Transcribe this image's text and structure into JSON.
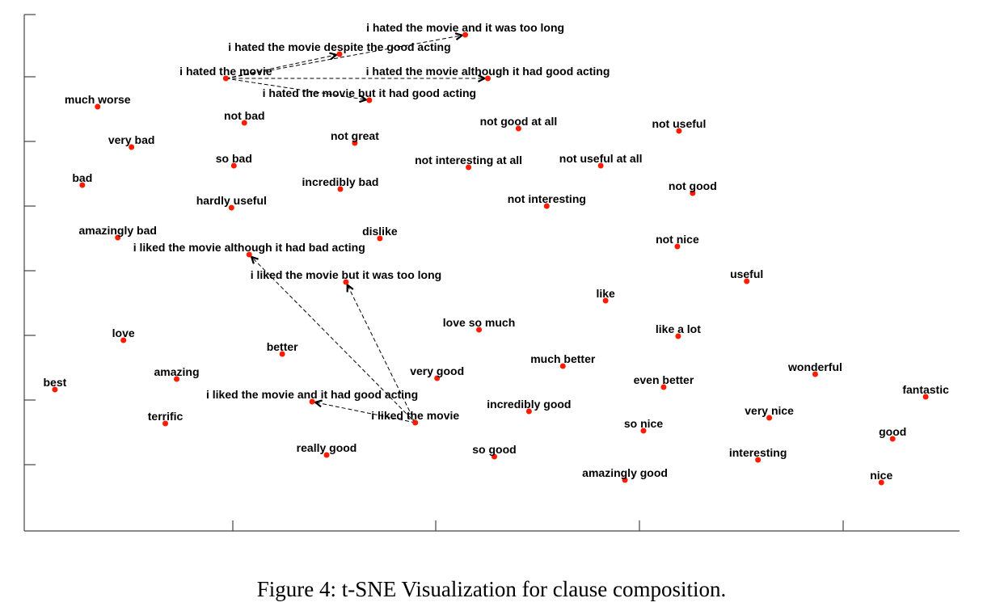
{
  "caption": "Figure 4: t-SNE Visualization for clause composition.",
  "chart_data": {
    "type": "scatter",
    "title": "",
    "xlabel": "",
    "ylabel": "",
    "xlim": [
      0,
      1160
    ],
    "ylim": [
      0,
      640
    ],
    "grid": false,
    "legend": "none",
    "colors": {
      "point": "#ff1a00",
      "arrow": "#000000"
    },
    "points": [
      {
        "label": "i hated the movie and it was too long",
        "x": 547,
        "y": 614
      },
      {
        "label": "i hated the movie despite the good acting",
        "x": 391,
        "y": 590
      },
      {
        "label": "i hated the movie",
        "x": 250,
        "y": 560
      },
      {
        "label": "i hated the movie although it had good acting",
        "x": 575,
        "y": 560
      },
      {
        "label": "i hated the movie but it had good acting",
        "x": 428,
        "y": 533
      },
      {
        "label": "much worse",
        "x": 91,
        "y": 525
      },
      {
        "label": "not bad",
        "x": 273,
        "y": 505
      },
      {
        "label": "not good at all",
        "x": 613,
        "y": 498
      },
      {
        "label": "not useful",
        "x": 812,
        "y": 495
      },
      {
        "label": "very bad",
        "x": 133,
        "y": 475
      },
      {
        "label": "not great",
        "x": 410,
        "y": 480
      },
      {
        "label": "so bad",
        "x": 260,
        "y": 452
      },
      {
        "label": "not interesting at all",
        "x": 551,
        "y": 450
      },
      {
        "label": "not useful at all",
        "x": 715,
        "y": 452
      },
      {
        "label": "bad",
        "x": 72,
        "y": 428
      },
      {
        "label": "incredibly bad",
        "x": 392,
        "y": 423
      },
      {
        "label": "not good",
        "x": 829,
        "y": 418
      },
      {
        "label": "hardly useful",
        "x": 257,
        "y": 400
      },
      {
        "label": "not interesting",
        "x": 648,
        "y": 402
      },
      {
        "label": "amazingly bad",
        "x": 116,
        "y": 363
      },
      {
        "label": "dislike",
        "x": 441,
        "y": 362
      },
      {
        "label": "not nice",
        "x": 810,
        "y": 352
      },
      {
        "label": "i liked the movie although it had bad acting",
        "x": 279,
        "y": 342
      },
      {
        "label": "i liked the movie but it was too long",
        "x": 399,
        "y": 308
      },
      {
        "label": "useful",
        "x": 896,
        "y": 309
      },
      {
        "label": "like",
        "x": 721,
        "y": 285
      },
      {
        "label": "love so much",
        "x": 564,
        "y": 249
      },
      {
        "label": "like a lot",
        "x": 811,
        "y": 241
      },
      {
        "label": "love",
        "x": 123,
        "y": 236
      },
      {
        "label": "better",
        "x": 320,
        "y": 219
      },
      {
        "label": "much better",
        "x": 668,
        "y": 204
      },
      {
        "label": "wonderful",
        "x": 981,
        "y": 194
      },
      {
        "label": "amazing",
        "x": 189,
        "y": 188
      },
      {
        "label": "very good",
        "x": 512,
        "y": 189
      },
      {
        "label": "even better",
        "x": 793,
        "y": 178
      },
      {
        "label": "best",
        "x": 38,
        "y": 175
      },
      {
        "label": "fantastic",
        "x": 1118,
        "y": 166
      },
      {
        "label": "i liked the movie and it had good acting",
        "x": 357,
        "y": 160
      },
      {
        "label": "incredibly good",
        "x": 626,
        "y": 148
      },
      {
        "label": "very nice",
        "x": 924,
        "y": 140
      },
      {
        "label": "i liked the movie",
        "x": 485,
        "y": 134
      },
      {
        "label": "terrific",
        "x": 175,
        "y": 133
      },
      {
        "label": "so nice",
        "x": 768,
        "y": 124
      },
      {
        "label": "good",
        "x": 1077,
        "y": 114
      },
      {
        "label": "really good",
        "x": 375,
        "y": 94
      },
      {
        "label": "so good",
        "x": 583,
        "y": 92
      },
      {
        "label": "interesting",
        "x": 910,
        "y": 88
      },
      {
        "label": "amazingly good",
        "x": 745,
        "y": 63
      },
      {
        "label": "nice",
        "x": 1063,
        "y": 60
      }
    ],
    "arrows": [
      {
        "from": "i hated the movie",
        "to": "i hated the movie and it was too long"
      },
      {
        "from": "i hated the movie",
        "to": "i hated the movie despite the good acting"
      },
      {
        "from": "i hated the movie",
        "to": "i hated the movie although it had good acting"
      },
      {
        "from": "i hated the movie",
        "to": "i hated the movie but it had good acting"
      },
      {
        "from": "i liked the movie",
        "to": "i liked the movie although it had bad acting"
      },
      {
        "from": "i liked the movie",
        "to": "i liked the movie but it was too long"
      },
      {
        "from": "i liked the movie",
        "to": "i liked the movie and it had good acting"
      }
    ]
  }
}
